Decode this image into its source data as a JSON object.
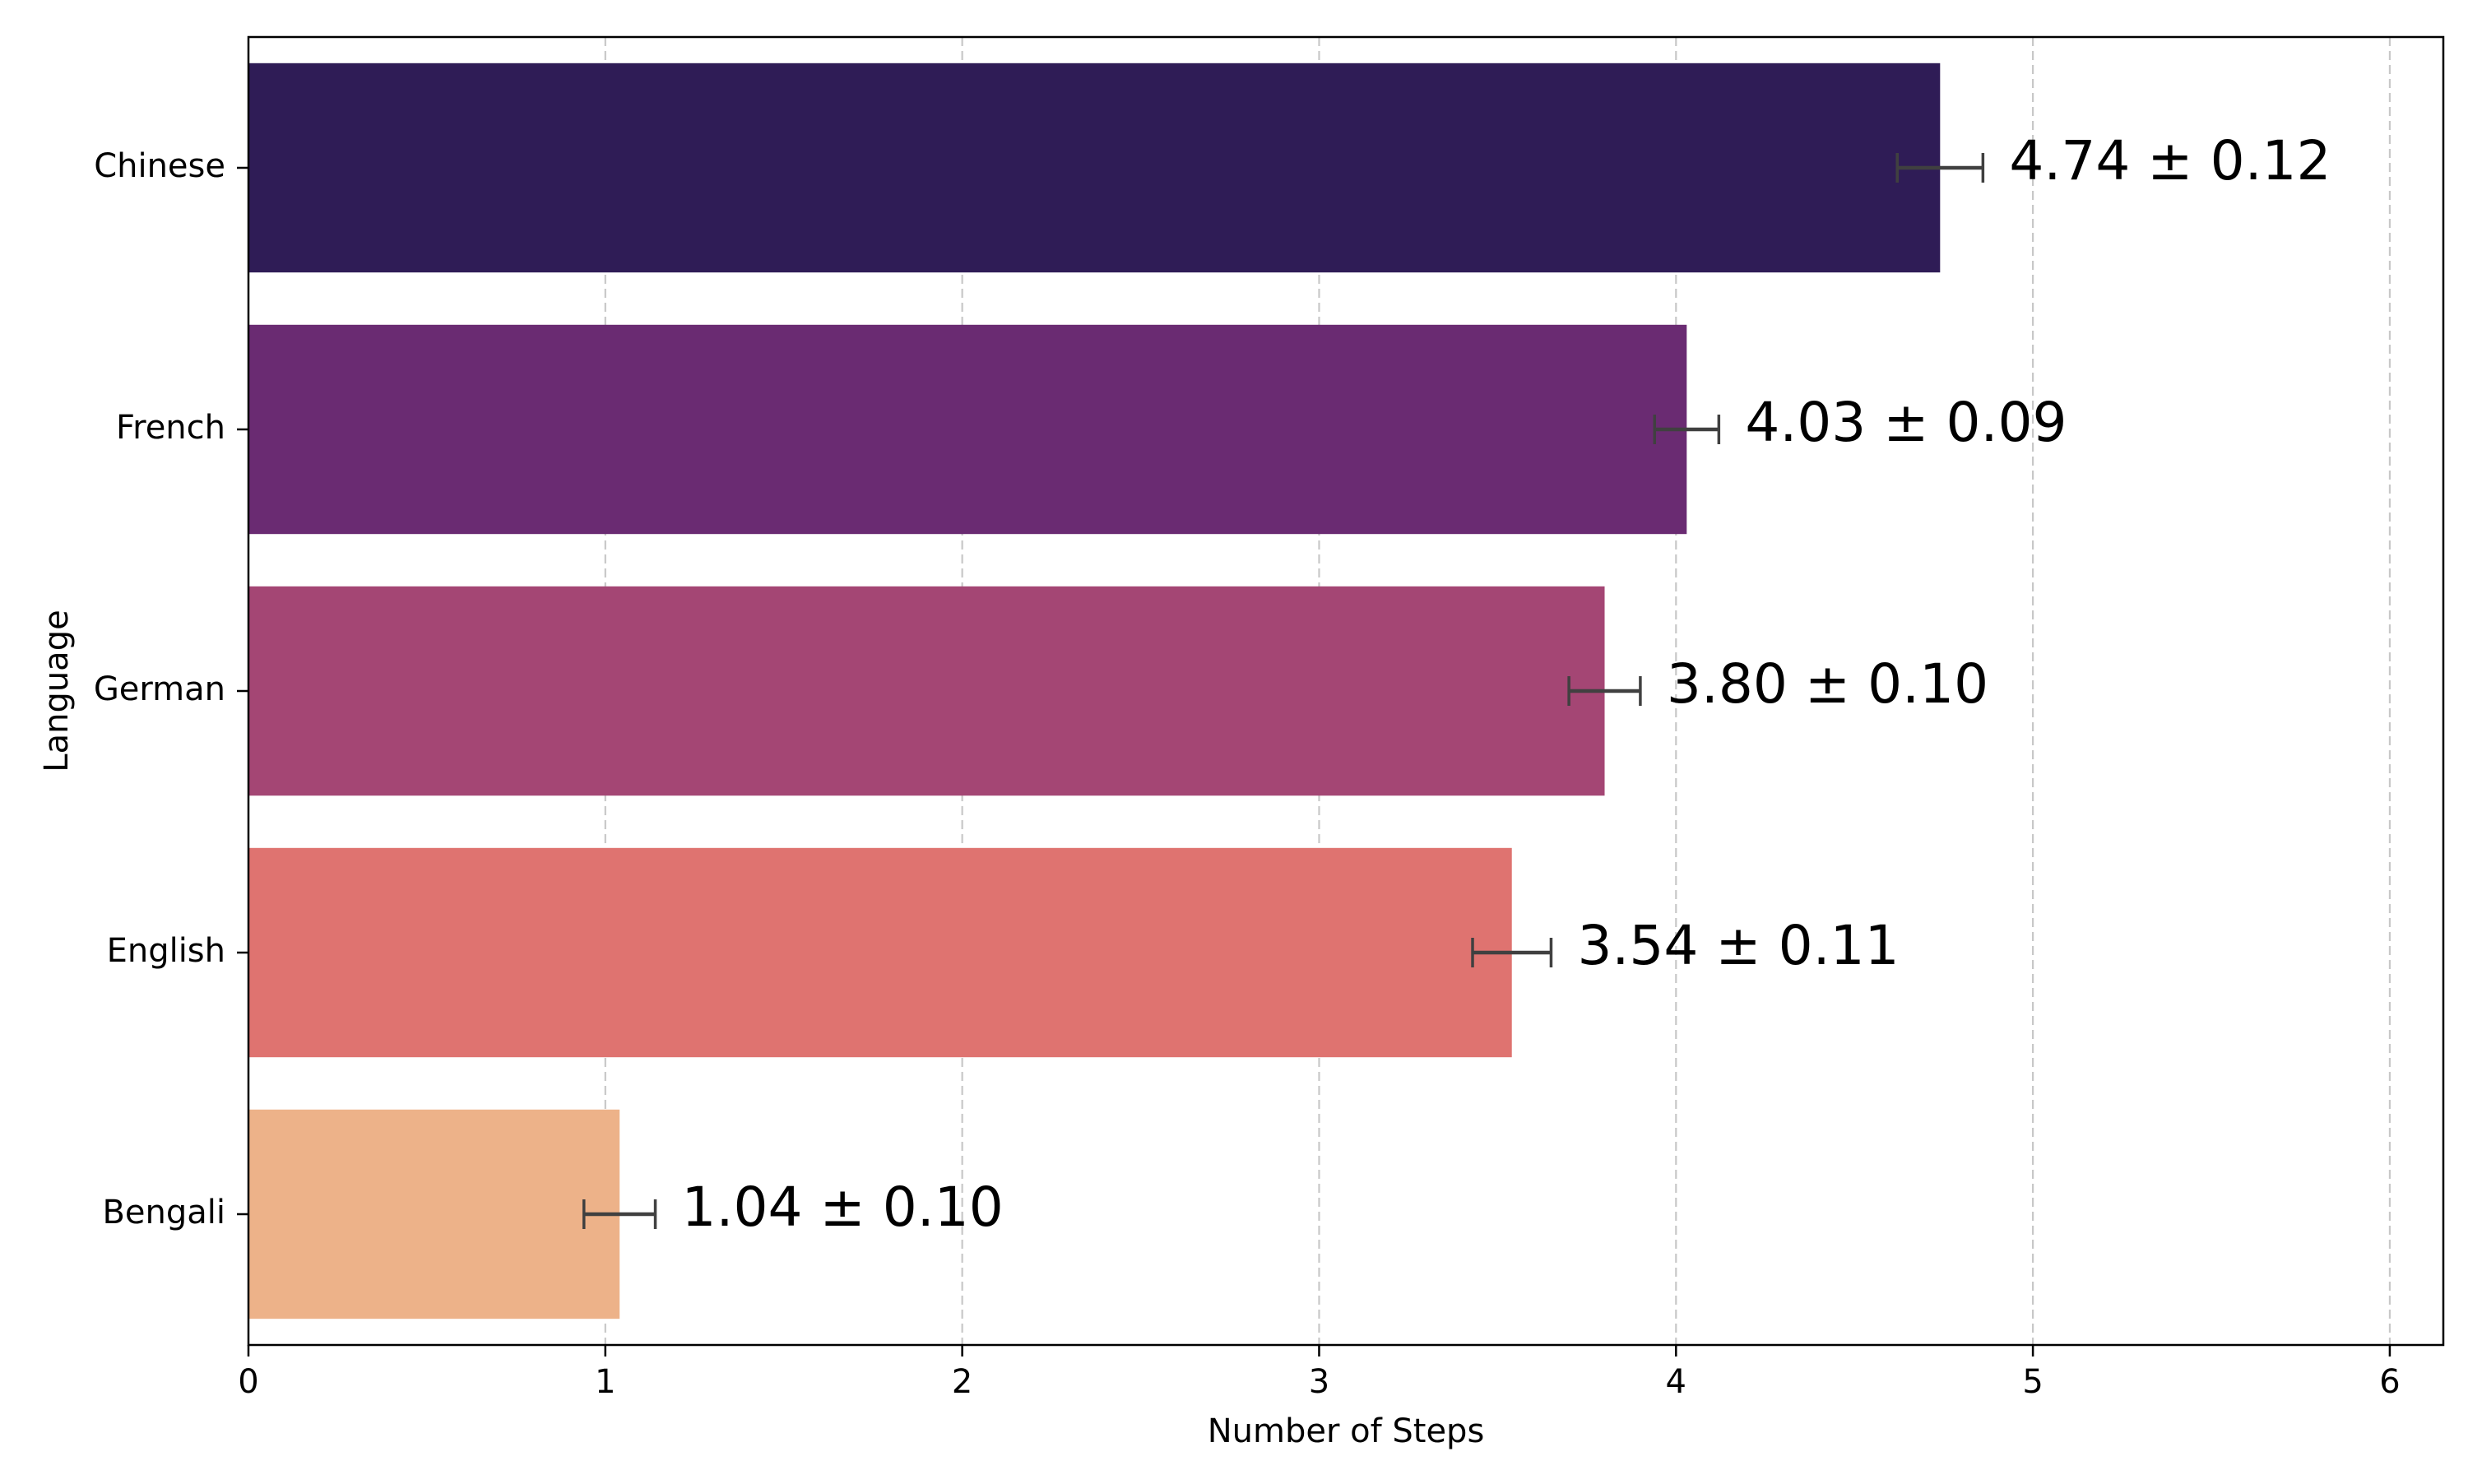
{
  "chart_data": {
    "type": "bar",
    "orientation": "horizontal",
    "categories": [
      "Chinese",
      "French",
      "German",
      "English",
      "Bengali"
    ],
    "values": [
      4.74,
      4.03,
      3.8,
      3.54,
      1.04
    ],
    "errors": [
      0.12,
      0.09,
      0.1,
      0.11,
      0.1
    ],
    "value_labels": [
      "4.74 ± 0.12",
      "4.03 ± 0.09",
      "3.80 ± 0.10",
      "3.54 ± 0.11",
      "1.04 ± 0.10"
    ],
    "colors": [
      "#2f1c56",
      "#6a2b72",
      "#a44674",
      "#df7370",
      "#edb289"
    ],
    "xlabel": "Number of Steps",
    "ylabel": "Language",
    "xlim": [
      0,
      6.15
    ],
    "xticks": [
      0,
      1,
      2,
      3,
      4,
      5,
      6
    ],
    "xtick_labels": [
      "0",
      "1",
      "2",
      "3",
      "4",
      "5",
      "6"
    ],
    "grid": "x-axis dashed"
  }
}
